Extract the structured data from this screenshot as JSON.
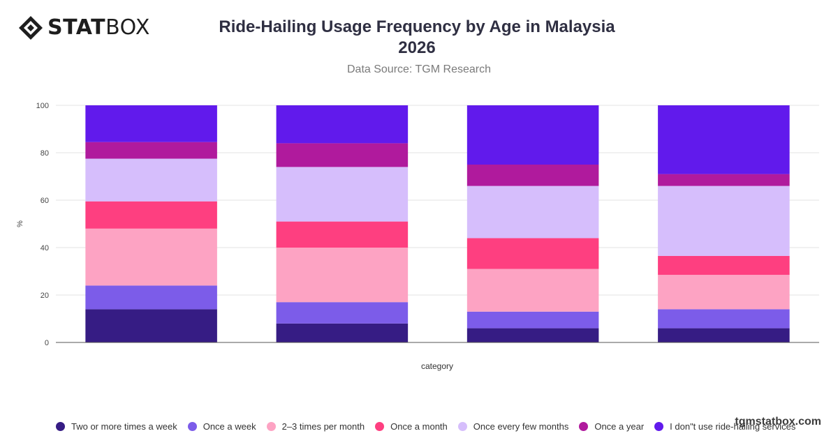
{
  "brand": {
    "logo_bold": "STAT",
    "logo_light": "BOX",
    "watermark": "tgmstatbox.com"
  },
  "header": {
    "title_line1": "Ride-Hailing Usage Frequency by Age in Malaysia",
    "title_line2": "2026",
    "subtitle": "Data Source: TGM Research"
  },
  "chart_data": {
    "type": "bar",
    "stacked": true,
    "title": "Ride-Hailing Usage Frequency by Age in Malaysia 2026",
    "subtitle": "Data Source: TGM Research",
    "xlabel": "category",
    "ylabel": "%",
    "ylim": [
      0,
      100
    ],
    "yticks": [
      0,
      20,
      40,
      60,
      80,
      100
    ],
    "grid": true,
    "legend_position": "bottom",
    "categories": [
      "",
      "",
      "",
      ""
    ],
    "series": [
      {
        "name": "Two or more times a week",
        "color": "#361c84",
        "values": [
          14,
          8,
          6,
          6
        ]
      },
      {
        "name": "Once a week",
        "color": "#7c5ce9",
        "values": [
          10,
          9,
          7,
          8
        ]
      },
      {
        "name": "2–3 times per month",
        "color": "#fda3c3",
        "values": [
          24,
          23,
          18,
          14.5
        ]
      },
      {
        "name": "Once a month",
        "color": "#fe3f80",
        "values": [
          11.5,
          11,
          13,
          8
        ]
      },
      {
        "name": "Once every few months",
        "color": "#d6befc",
        "values": [
          18,
          23,
          22,
          29.5
        ]
      },
      {
        "name": "Once a year",
        "color": "#b01a9d",
        "values": [
          7,
          10,
          9,
          5
        ]
      },
      {
        "name": "I don\"t use ride-hailing services",
        "color": "#611aec",
        "values": [
          15.5,
          16,
          25,
          29
        ]
      }
    ]
  }
}
